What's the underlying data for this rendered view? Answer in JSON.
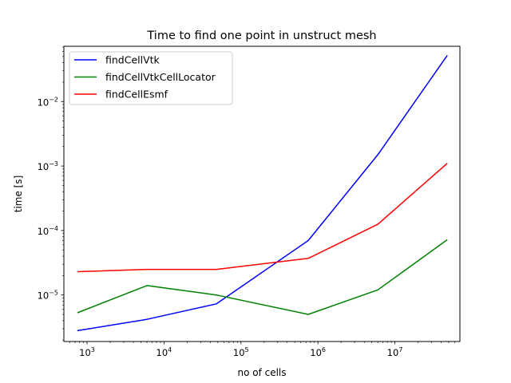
{
  "chart_data": {
    "type": "line",
    "title": "Time to find one point in unstruct mesh",
    "xlabel": "no of cells",
    "ylabel": "time [s]",
    "xscale": "log",
    "yscale": "log",
    "xlim": [
      500,
      70000000
    ],
    "ylim": [
      1.9e-06,
      0.072
    ],
    "xticks": [
      {
        "value": 1000,
        "base": "10",
        "exp": "3"
      },
      {
        "value": 10000,
        "base": "10",
        "exp": "4"
      },
      {
        "value": 100000,
        "base": "10",
        "exp": "5"
      },
      {
        "value": 1000000,
        "base": "10",
        "exp": "6"
      },
      {
        "value": 10000000,
        "base": "10",
        "exp": "7"
      }
    ],
    "yticks": [
      {
        "value": 1e-05,
        "base": "10",
        "exp": "−5"
      },
      {
        "value": 0.0001,
        "base": "10",
        "exp": "−4"
      },
      {
        "value": 0.001,
        "base": "10",
        "exp": "−3"
      },
      {
        "value": 0.01,
        "base": "10",
        "exp": "−2"
      }
    ],
    "grid": false,
    "legend_position": "top-left",
    "x": [
      750,
      6000,
      48000,
      750000,
      6000000,
      48000000
    ],
    "series": [
      {
        "name": "findCellVtk",
        "color": "#0000ff",
        "values": [
          2.8e-06,
          4.2e-06,
          7.3e-06,
          7e-05,
          0.0015,
          0.052
        ]
      },
      {
        "name": "findCellVtkCellLocator",
        "color": "#008000",
        "values": [
          5.3e-06,
          1.4e-05,
          1e-05,
          5e-06,
          1.2e-05,
          7.2e-05
        ]
      },
      {
        "name": "findCellEsmf",
        "color": "#ff0000",
        "values": [
          2.3e-05,
          2.5e-05,
          2.5e-05,
          3.7e-05,
          0.000125,
          0.0011
        ]
      }
    ]
  }
}
